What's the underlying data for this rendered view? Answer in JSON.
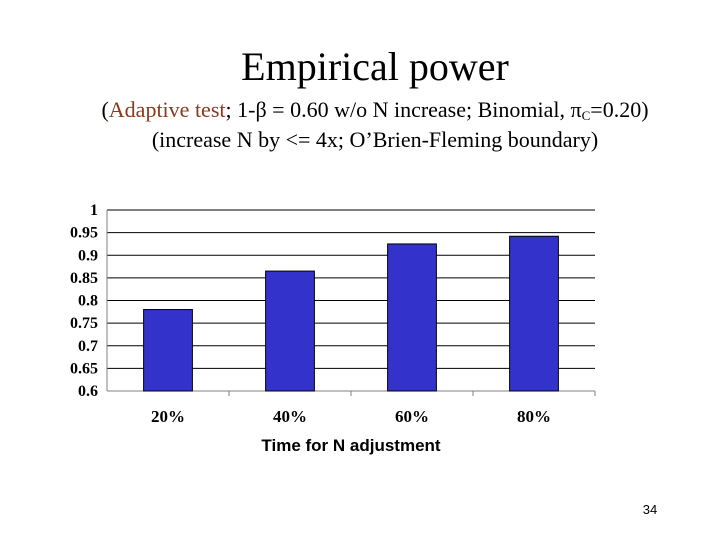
{
  "slide": {
    "title": "Empirical power",
    "subtitle1": {
      "open": "(",
      "accent": "Adaptive test",
      "part1": "; 1-",
      "beta": "β",
      "part2": " = 0.60 w/o N increase; Binomial, ",
      "pi": "π",
      "sub": "C",
      "part3": "=0.20)"
    },
    "subtitle2": "(increase  N  by <= 4x; O’Brien-Fleming boundary)",
    "page_number": "34",
    "accent_color": "#8a3a1e"
  },
  "chart_data": {
    "type": "bar",
    "categories": [
      "20%",
      "40%",
      "60%",
      "80%"
    ],
    "values": [
      0.78,
      0.865,
      0.925,
      0.942
    ],
    "xlabel": "Time for  N  adjustment",
    "ylabel": "",
    "ylim": [
      0.6,
      1.0
    ],
    "yticks": [
      0.6,
      0.65,
      0.7,
      0.75,
      0.8,
      0.85,
      0.9,
      0.95,
      1
    ],
    "ytick_labels": [
      "0.6",
      "0.65",
      "0.7",
      "0.75",
      "0.8",
      "0.85",
      "0.9",
      "0.95",
      "1"
    ],
    "grid": true,
    "bar_color": "#3333cc"
  }
}
